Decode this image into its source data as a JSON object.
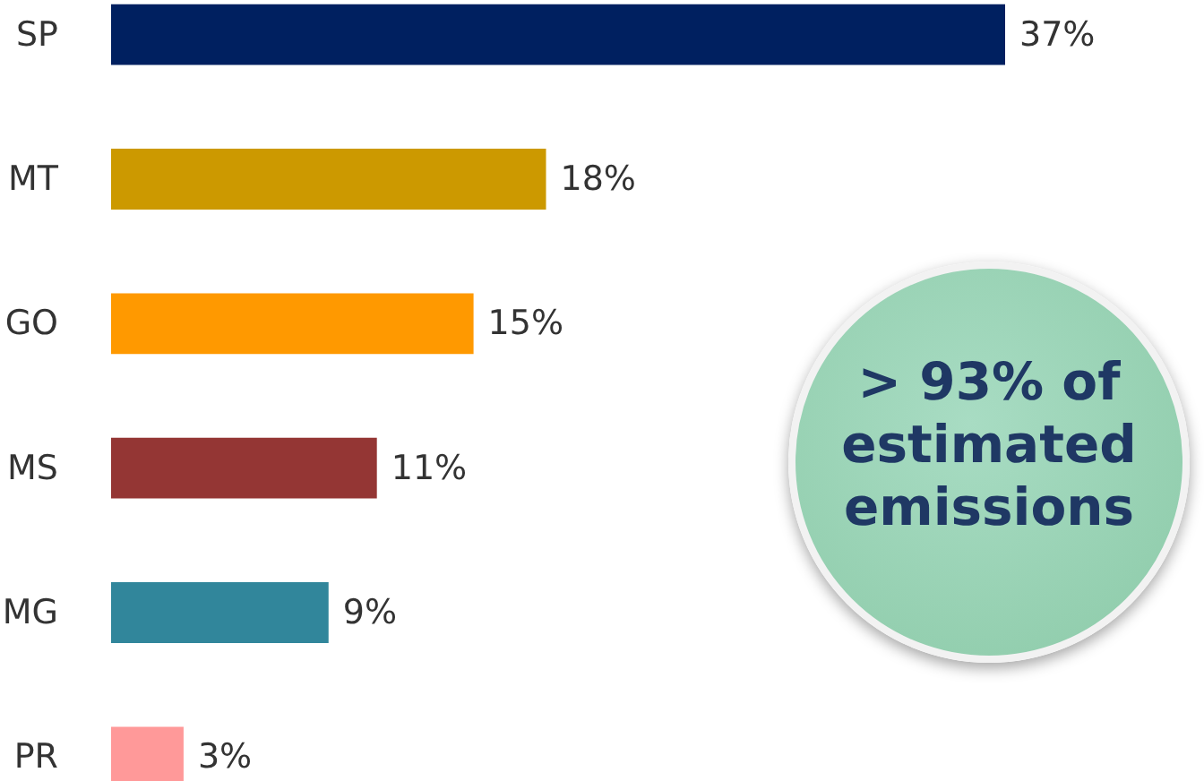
{
  "chart_data": {
    "type": "bar",
    "orientation": "horizontal",
    "value_labels": [
      "37%",
      "18%",
      "15%",
      "11%",
      "9%",
      "3%"
    ],
    "categories": [
      "SP",
      "MT",
      "GO",
      "MS",
      "MG",
      "PR"
    ],
    "values": [
      37,
      18,
      15,
      11,
      9,
      3
    ],
    "colors": [
      "#002060",
      "#cc9900",
      "#ff9900",
      "#943634",
      "#31869b",
      "#ff9999"
    ],
    "annotations": [
      "> 93% of estimated emissions"
    ]
  }
}
